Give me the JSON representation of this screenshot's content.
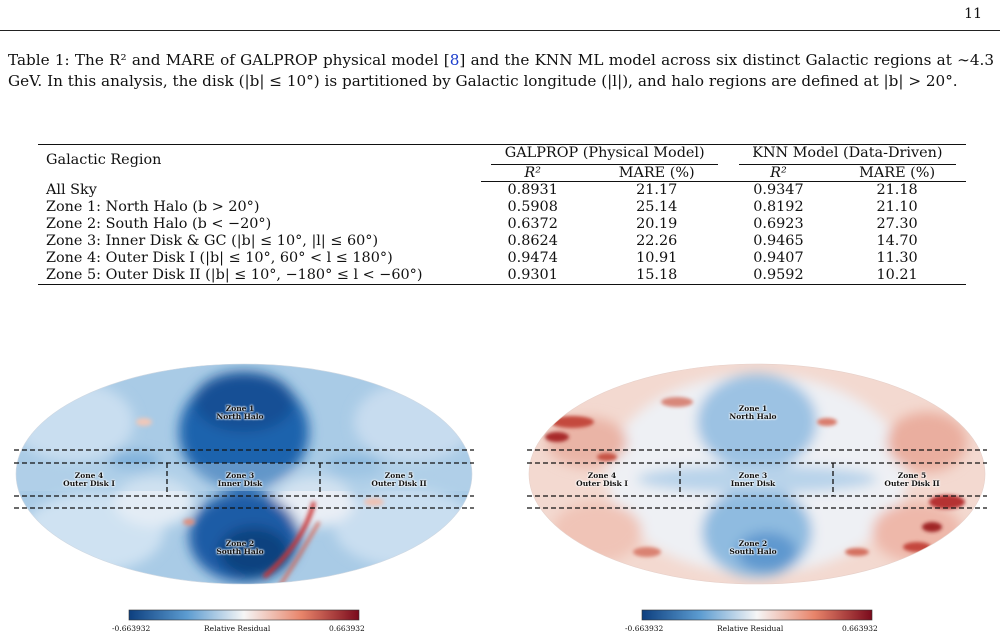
{
  "page": {
    "number": "11"
  },
  "caption": {
    "part1": "Table 1: The R² and MARE of GALPROP physical model [",
    "ref": "8",
    "part2": "] and the KNN ML model across six distinct Galactic regions at ∼4.3 GeV. In this analysis, the disk (|b| ≤ 10°) is partitioned by Galactic longitude (|l|), and halo regions are defined at |b| > 20°."
  },
  "table": {
    "region_header": "Galactic Region",
    "groups": [
      "GALPROP (Physical Model)",
      "KNN Model (Data-Driven)"
    ],
    "subheaders": [
      "R²",
      "MARE (%)",
      "R²",
      "MARE (%)"
    ],
    "rows": [
      {
        "region": "All Sky",
        "galprop_r2": "0.8931",
        "galprop_mare": "21.17",
        "knn_r2": "0.9347",
        "knn_mare": "21.18"
      },
      {
        "region": "Zone 1: North Halo (b > 20°)",
        "galprop_r2": "0.5908",
        "galprop_mare": "25.14",
        "knn_r2": "0.8192",
        "knn_mare": "21.10"
      },
      {
        "region": "Zone 2: South Halo (b < −20°)",
        "galprop_r2": "0.6372",
        "galprop_mare": "20.19",
        "knn_r2": "0.6923",
        "knn_mare": "27.30"
      },
      {
        "region": "Zone 3: Inner Disk & GC (|b| ≤ 10°, |l| ≤ 60°)",
        "galprop_r2": "0.8624",
        "galprop_mare": "22.26",
        "knn_r2": "0.9465",
        "knn_mare": "14.70"
      },
      {
        "region": "Zone 4: Outer Disk I (|b| ≤ 10°, 60° < l ≤ 180°)",
        "galprop_r2": "0.9474",
        "galprop_mare": "10.91",
        "knn_r2": "0.9407",
        "knn_mare": "11.30"
      },
      {
        "region": "Zone 5: Outer Disk II (|b| ≤ 10°, −180° ≤ l < −60°)",
        "galprop_r2": "0.9301",
        "galprop_mare": "15.18",
        "knn_r2": "0.9592",
        "knn_mare": "10.21"
      }
    ]
  },
  "maps": [
    {
      "zones": {
        "zone1": [
          "Zone 1",
          "North Halo"
        ],
        "zone2": [
          "Zone 2",
          "South Halo"
        ],
        "zone3": [
          "Zone 3",
          "Inner Disk"
        ],
        "zone4": [
          "Zone 4",
          "Outer Disk I"
        ],
        "zone5": [
          "Zone 5",
          "Outer Disk II"
        ]
      },
      "colorbar": {
        "min": "-0.663932",
        "max": "0.663932",
        "label": "Relative Residual"
      },
      "colors": {
        "low": "#1f5fa8",
        "mid": "#f3f3f3",
        "high": "#8b0a1e"
      }
    },
    {
      "zones": {
        "zone1": [
          "Zone 1",
          "North Halo"
        ],
        "zone2": [
          "Zone 2",
          "South Halo"
        ],
        "zone3": [
          "Zone 3",
          "Inner Disk"
        ],
        "zone4": [
          "Zone 4",
          "Outer Disk I"
        ],
        "zone5": [
          "Zone 5",
          "Outer Disk II"
        ]
      },
      "colorbar": {
        "min": "-0.663932",
        "max": "0.663932",
        "label": "Relative Residual"
      },
      "colors": {
        "low": "#1f5fa8",
        "mid": "#f3f3f3",
        "high": "#8b0a1e"
      }
    }
  ]
}
